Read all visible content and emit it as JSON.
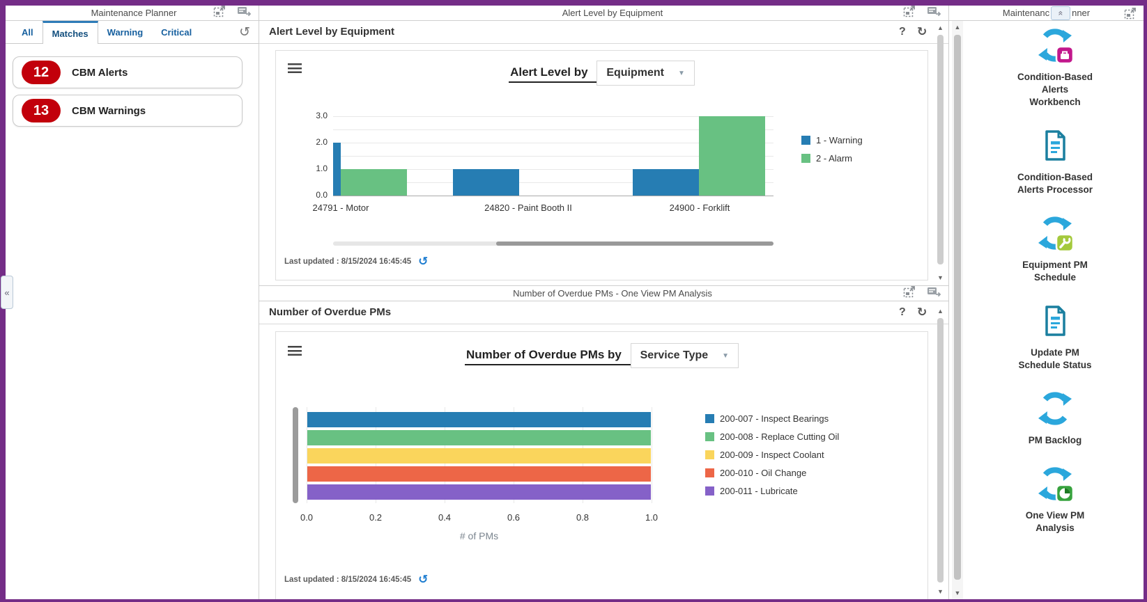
{
  "header": {
    "left_title": "Maintenance Planner",
    "center_title": "Alert Level by Equipment",
    "right_title_left": "Maintenanc",
    "right_title_right": "nner",
    "strip2_title": "Number of Overdue PMs - One View PM Analysis"
  },
  "left_panel": {
    "tabs": [
      {
        "label": "All",
        "selected": false
      },
      {
        "label": "Matches",
        "selected": true
      },
      {
        "label": "Warning",
        "selected": false
      },
      {
        "label": "Critical",
        "selected": false
      }
    ],
    "cards": [
      {
        "count": "12",
        "label": "CBM Alerts"
      },
      {
        "count": "13",
        "label": "CBM Warnings"
      }
    ],
    "badge_color": "#C2000B"
  },
  "panel1": {
    "title": "Alert Level by Equipment",
    "help_label": "?",
    "refresh_label": "↻",
    "last_updated": "Last updated : 8/15/2024 16:45:45"
  },
  "panel2": {
    "title": "Number of Overdue PMs",
    "help_label": "?",
    "refresh_label": "↻",
    "last_updated": "Last updated : 8/15/2024 16:45:45"
  },
  "chart_data": [
    {
      "type": "bar",
      "title_prefix": "Alert Level by ",
      "group_by_selector": "Equipment",
      "categories": [
        "24791 - Motor",
        "24820 - Paint Booth II",
        "24900 - Forklift"
      ],
      "series": [
        {
          "name": "1 - Warning",
          "color": "#267DB3",
          "values": [
            2,
            1,
            1
          ]
        },
        {
          "name": "2 - Alarm",
          "color": "#68C182",
          "values": [
            1,
            0,
            3
          ]
        }
      ],
      "ylim": [
        0,
        3
      ],
      "yticks": [
        "0.0",
        "1.0",
        "2.0",
        "3.0"
      ],
      "grid": "horizontal",
      "legend_position": "right",
      "note": "leftmost Warning bar partially scrolled out of view; horizontal scrollbar below plot"
    },
    {
      "type": "bar-horizontal",
      "title_prefix": "Number of Overdue PMs by ",
      "group_by_selector": "Service Type",
      "xlabel": "# of PMs",
      "xlim": [
        0,
        1
      ],
      "xticks": [
        "0.0",
        "0.2",
        "0.4",
        "0.6",
        "0.8",
        "1.0"
      ],
      "series": [
        {
          "name": "200-007 - Inspect Bearings",
          "color": "#267DB3",
          "value": 1
        },
        {
          "name": "200-008 - Replace Cutting Oil",
          "color": "#68C182",
          "value": 1
        },
        {
          "name": "200-009 - Inspect Coolant",
          "color": "#FAD55C",
          "value": 1
        },
        {
          "name": "200-010 - Oil Change",
          "color": "#ED6647",
          "value": 1
        },
        {
          "name": "200-011 - Lubricate",
          "color": "#8561C8",
          "value": 1
        }
      ],
      "grid": "vertical",
      "legend_position": "right"
    }
  ],
  "sidebar": {
    "items": [
      {
        "name": "condition-based-alerts-workbench",
        "label": "Condition-Based\nAlerts\nWorkbench",
        "icon": "sync-briefcase-icon"
      },
      {
        "name": "condition-based-alerts-processor",
        "label": "Condition-Based\nAlerts Processor",
        "icon": "document-icon"
      },
      {
        "name": "equipment-pm-schedule",
        "label": "Equipment PM\nSchedule",
        "icon": "sync-wrench-icon"
      },
      {
        "name": "update-pm-schedule-status",
        "label": "Update PM\nSchedule Status",
        "icon": "document-icon"
      },
      {
        "name": "pm-backlog",
        "label": "PM Backlog",
        "icon": "sync-icon"
      },
      {
        "name": "one-view-pm-analysis",
        "label": "One View PM\nAnalysis",
        "icon": "sync-pie-icon"
      }
    ]
  },
  "colors": {
    "accent_purple": "#742D87",
    "link_blue": "#17609F",
    "badge_red": "#C2000B",
    "chart_palette": [
      "#267DB3",
      "#68C182",
      "#FAD55C",
      "#ED6647",
      "#8561C8"
    ]
  }
}
